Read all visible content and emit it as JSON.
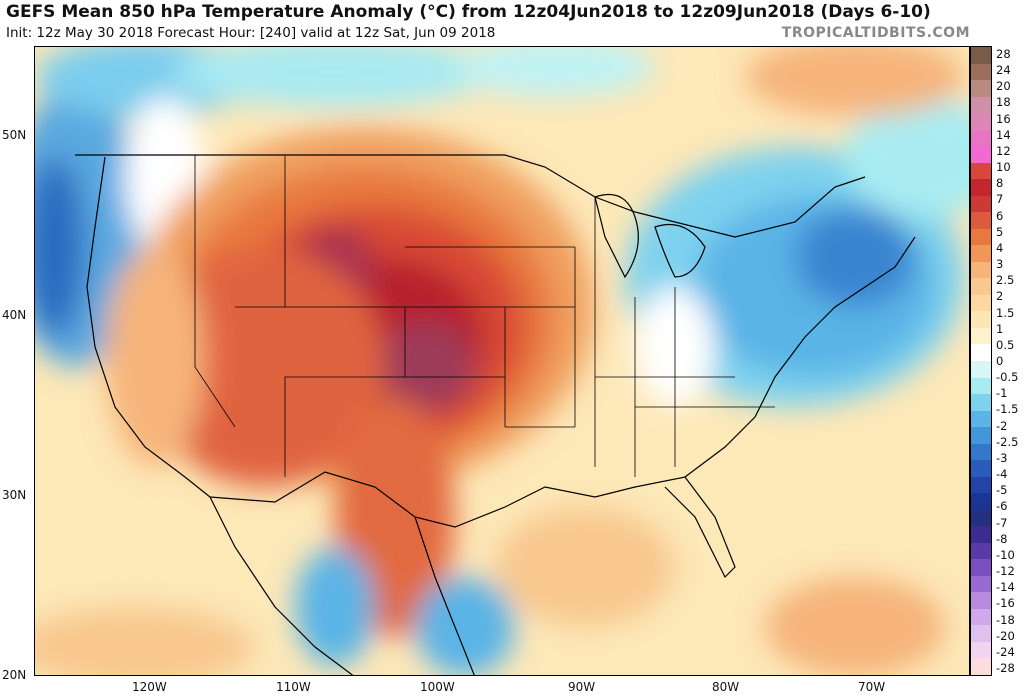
{
  "header": {
    "title": "GEFS Mean 850 hPa Temperature Anomaly (°C) from 12z04Jun2018 to 12z09Jun2018 (Days 6-10)",
    "subtitle": "Init: 12z May 30 2018   Forecast Hour: [240]   valid at 12z Sat, Jun 09 2018",
    "brand": "TROPICALTIDBITS.COM"
  },
  "map": {
    "lat_labels": [
      "50N",
      "40N",
      "30N",
      "20N"
    ],
    "lon_labels": [
      "120W",
      "110W",
      "100W",
      "90W",
      "80W",
      "70W"
    ]
  },
  "colorbar": {
    "labels": [
      "28",
      "24",
      "20",
      "18",
      "16",
      "14",
      "12",
      "10",
      "8",
      "7",
      "6",
      "5",
      "4",
      "3",
      "2.5",
      "2",
      "1.5",
      "1",
      "0.5",
      "0",
      "-0.5",
      "-1",
      "-1.5",
      "-2",
      "-2.5",
      "-3",
      "-4",
      "-5",
      "-6",
      "-7",
      "-8",
      "-10",
      "-12",
      "-14",
      "-16",
      "-18",
      "-20",
      "-24",
      "-28"
    ],
    "colors": [
      "#7a5a48",
      "#9b6e5c",
      "#b98a80",
      "#cf8fa8",
      "#dd86b8",
      "#e874c4",
      "#f06ad0",
      "#d8463e",
      "#c2262e",
      "#cc3a36",
      "#dc5a3e",
      "#e8783e",
      "#f09658",
      "#f6b47a",
      "#f8c88e",
      "#fad8a0",
      "#fce6b4",
      "#fef2cc",
      "#ffffff",
      "#d8f6f6",
      "#a8ecf2",
      "#7ed2ee",
      "#5ab4e6",
      "#4496da",
      "#3478cc",
      "#2a5cbc",
      "#2244a8",
      "#1c3494",
      "#243080",
      "#3a2c90",
      "#5a3aa8",
      "#7a50c0",
      "#9a6ad4",
      "#b88ae0",
      "#d0a8ea",
      "#e0c0ee",
      "#f0d4f2",
      "#fcdcdc"
    ]
  }
}
